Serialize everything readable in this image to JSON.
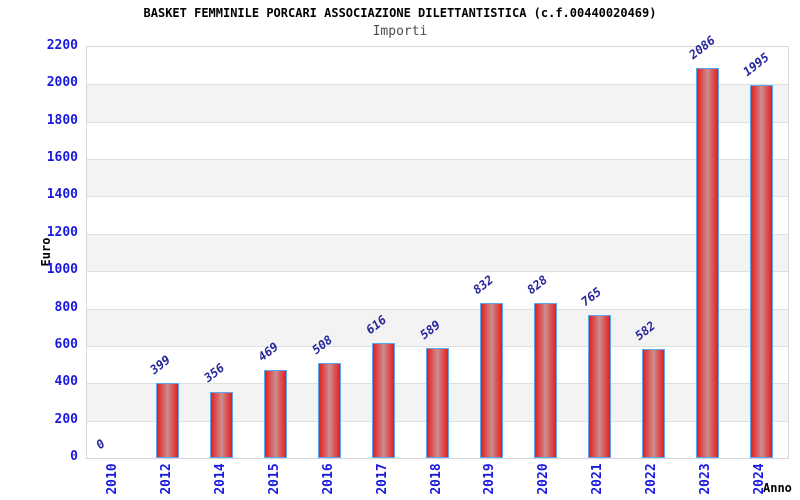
{
  "header": {
    "title": "BASKET FEMMINILE PORCARI ASSOCIAZIONE DILETTANTISTICA (c.f.00440020469)",
    "subtitle": "Importi"
  },
  "chart_data": {
    "type": "bar",
    "title": "BASKET FEMMINILE PORCARI ASSOCIAZIONE DILETTANTISTICA (c.f.00440020469)",
    "subtitle": "Importi",
    "categories": [
      "2010",
      "2012",
      "2014",
      "2015",
      "2016",
      "2017",
      "2018",
      "2019",
      "2020",
      "2021",
      "2022",
      "2023",
      "2024"
    ],
    "values": [
      0,
      399,
      356,
      469,
      508,
      616,
      589,
      832,
      828,
      765,
      582,
      2086,
      1995
    ],
    "xlabel": "Anno",
    "ylabel": "Euro",
    "ylim": [
      0,
      2200
    ],
    "ytick_step": 200,
    "grid": true,
    "legend": "none",
    "bands_alternating": true
  },
  "palette": {
    "title_color": "#000000",
    "subtitle_color": "#4f4f4f",
    "axis_tick_color": "#1a1adf",
    "value_label_color": "#26269c",
    "bar_border": "#58a7ef",
    "bar_edge_red": "#e91c1c",
    "bar_mid_red": "#c98f8f",
    "band_gray": "#f3f3f3",
    "band_white": "#ffffff",
    "grid_color": "#e0e0e0",
    "frame_color": "#d6d6d6"
  }
}
